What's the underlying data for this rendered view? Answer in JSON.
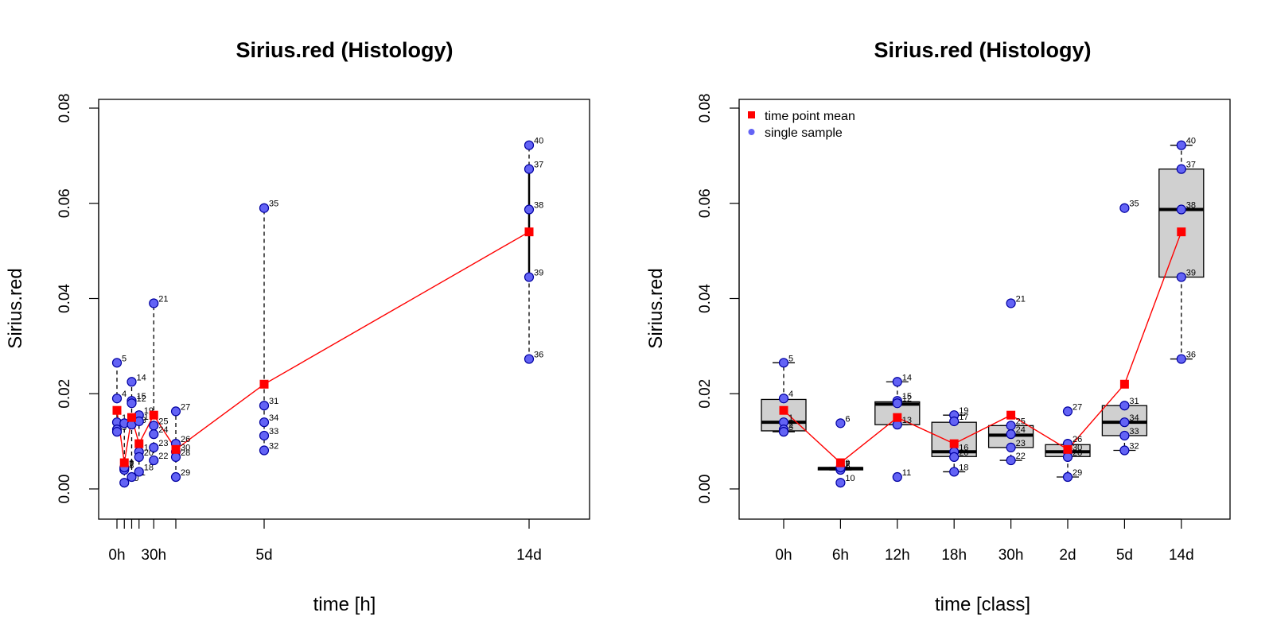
{
  "chart_data": [
    {
      "type": "scatter",
      "title": "Sirius.red (Histology)",
      "xlabel": "time [h]",
      "ylabel": "Sirius.red",
      "ylim": [
        0,
        0.08
      ],
      "yticks": [
        "0.00",
        "0.02",
        "0.04",
        "0.06",
        "0.08"
      ],
      "xlim": [
        -6,
        342
      ],
      "xtick_positions": [
        0,
        6,
        12,
        18,
        30,
        48,
        120,
        336
      ],
      "xtick_labels": [
        {
          "x": 0,
          "label": "0h"
        },
        {
          "x": 30,
          "label": "30h"
        },
        {
          "x": 120,
          "label": "5d"
        },
        {
          "x": 336,
          "label": "14d"
        }
      ],
      "series": [
        {
          "name": "time point mean",
          "x": [
            0,
            6,
            12,
            18,
            30,
            48,
            120,
            336
          ],
          "y": [
            0.0165,
            0.0055,
            0.015,
            0.0095,
            0.0155,
            0.0083,
            0.022,
            0.054
          ]
        }
      ],
      "samples": [
        {
          "x": 0,
          "y": 0.0265,
          "id": "5"
        },
        {
          "x": 0,
          "y": 0.019,
          "id": "4"
        },
        {
          "x": 0,
          "y": 0.014,
          "id": "1"
        },
        {
          "x": 0,
          "y": 0.0125,
          "id": "2"
        },
        {
          "x": 0,
          "y": 0.012,
          "id": "3"
        },
        {
          "x": 6,
          "y": 0.0138,
          "id": "6"
        },
        {
          "x": 6,
          "y": 0.0043,
          "id": "7"
        },
        {
          "x": 6,
          "y": 0.004,
          "id": "8"
        },
        {
          "x": 6,
          "y": 0.0045,
          "id": "9"
        },
        {
          "x": 6,
          "y": 0.0013,
          "id": "10"
        },
        {
          "x": 12,
          "y": 0.0225,
          "id": "14"
        },
        {
          "x": 12,
          "y": 0.0185,
          "id": "15"
        },
        {
          "x": 12,
          "y": 0.018,
          "id": "12"
        },
        {
          "x": 12,
          "y": 0.0135,
          "id": "13"
        },
        {
          "x": 12,
          "y": 0.0025,
          "id": "11"
        },
        {
          "x": 18,
          "y": 0.0155,
          "id": "19"
        },
        {
          "x": 18,
          "y": 0.0142,
          "id": "17"
        },
        {
          "x": 18,
          "y": 0.0078,
          "id": "16"
        },
        {
          "x": 18,
          "y": 0.0067,
          "id": "20"
        },
        {
          "x": 18,
          "y": 0.0036,
          "id": "18"
        },
        {
          "x": 30,
          "y": 0.039,
          "id": "21"
        },
        {
          "x": 30,
          "y": 0.0133,
          "id": "25"
        },
        {
          "x": 30,
          "y": 0.0115,
          "id": "24"
        },
        {
          "x": 30,
          "y": 0.0087,
          "id": "23"
        },
        {
          "x": 30,
          "y": 0.006,
          "id": "22"
        },
        {
          "x": 48,
          "y": 0.0163,
          "id": "27"
        },
        {
          "x": 48,
          "y": 0.0095,
          "id": "26"
        },
        {
          "x": 48,
          "y": 0.0078,
          "id": "30"
        },
        {
          "x": 48,
          "y": 0.0067,
          "id": "28"
        },
        {
          "x": 48,
          "y": 0.0025,
          "id": "29"
        },
        {
          "x": 120,
          "y": 0.059,
          "id": "35"
        },
        {
          "x": 120,
          "y": 0.0175,
          "id": "31"
        },
        {
          "x": 120,
          "y": 0.014,
          "id": "34"
        },
        {
          "x": 120,
          "y": 0.0112,
          "id": "33"
        },
        {
          "x": 120,
          "y": 0.0081,
          "id": "32"
        },
        {
          "x": 336,
          "y": 0.0722,
          "id": "40"
        },
        {
          "x": 336,
          "y": 0.0672,
          "id": "37"
        },
        {
          "x": 336,
          "y": 0.0587,
          "id": "38"
        },
        {
          "x": 336,
          "y": 0.0445,
          "id": "39"
        },
        {
          "x": 336,
          "y": 0.0273,
          "id": "36"
        }
      ],
      "ranges": [
        {
          "x": 0,
          "y1": 0.012,
          "y2": 0.0265
        },
        {
          "x": 6,
          "y1": 0.0013,
          "y2": 0.0138
        },
        {
          "x": 12,
          "y1": 0.0025,
          "y2": 0.0225
        },
        {
          "x": 18,
          "y1": 0.0036,
          "y2": 0.0155
        },
        {
          "x": 30,
          "y1": 0.006,
          "y2": 0.039
        },
        {
          "x": 48,
          "y1": 0.0025,
          "y2": 0.0163
        },
        {
          "x": 120,
          "y1": 0.0081,
          "y2": 0.059
        },
        {
          "x": 336,
          "y1": 0.0273,
          "y2": 0.0722
        }
      ]
    },
    {
      "type": "box",
      "title": "Sirius.red (Histology)",
      "xlabel": "time [class]",
      "ylabel": "Sirius.red",
      "ylim": [
        0,
        0.08
      ],
      "yticks": [
        "0.00",
        "0.02",
        "0.04",
        "0.06",
        "0.08"
      ],
      "categories": [
        "0h",
        "6h",
        "12h",
        "18h",
        "30h",
        "2d",
        "5d",
        "14d"
      ],
      "legend": {
        "position": "top-left",
        "entries": [
          "time point mean",
          "single sample"
        ]
      },
      "boxes": [
        {
          "lw": 0.012,
          "q1": 0.0122,
          "med": 0.014,
          "q3": 0.0188,
          "uw": 0.0265,
          "outliers": []
        },
        {
          "lw": 0.004,
          "q1": 0.004,
          "med": 0.0043,
          "q3": 0.0045,
          "uw": 0.0045,
          "outliers": [
            0.0138,
            0.0013
          ]
        },
        {
          "lw": 0.0135,
          "q1": 0.0135,
          "med": 0.0178,
          "q3": 0.0183,
          "uw": 0.0225,
          "outliers": [
            0.0025
          ]
        },
        {
          "lw": 0.0036,
          "q1": 0.0068,
          "med": 0.0078,
          "q3": 0.014,
          "uw": 0.0155,
          "outliers": []
        },
        {
          "lw": 0.006,
          "q1": 0.0087,
          "med": 0.0113,
          "q3": 0.0133,
          "uw": 0.0133,
          "outliers": [
            0.039
          ]
        },
        {
          "lw": 0.0025,
          "q1": 0.0068,
          "med": 0.0078,
          "q3": 0.0093,
          "uw": 0.0093,
          "outliers": [
            0.0163
          ]
        },
        {
          "lw": 0.0081,
          "q1": 0.0112,
          "med": 0.014,
          "q3": 0.0175,
          "uw": 0.0175,
          "outliers": [
            0.059
          ]
        },
        {
          "lw": 0.0273,
          "q1": 0.0445,
          "med": 0.0587,
          "q3": 0.0672,
          "uw": 0.0722,
          "outliers": []
        }
      ],
      "series": [
        {
          "name": "time point mean",
          "values": [
            0.0165,
            0.0055,
            0.015,
            0.0095,
            0.0155,
            0.0083,
            0.022,
            0.054
          ]
        }
      ],
      "samples": [
        {
          "c": 0,
          "y": 0.0265,
          "id": "5"
        },
        {
          "c": 0,
          "y": 0.019,
          "id": "4"
        },
        {
          "c": 0,
          "y": 0.014,
          "id": "1"
        },
        {
          "c": 0,
          "y": 0.0125,
          "id": "2"
        },
        {
          "c": 0,
          "y": 0.012,
          "id": "3"
        },
        {
          "c": 1,
          "y": 0.0138,
          "id": "6"
        },
        {
          "c": 1,
          "y": 0.0043,
          "id": "7"
        },
        {
          "c": 1,
          "y": 0.004,
          "id": "8"
        },
        {
          "c": 1,
          "y": 0.0045,
          "id": "9"
        },
        {
          "c": 1,
          "y": 0.0013,
          "id": "10"
        },
        {
          "c": 2,
          "y": 0.0225,
          "id": "14"
        },
        {
          "c": 2,
          "y": 0.0185,
          "id": "15"
        },
        {
          "c": 2,
          "y": 0.018,
          "id": "12"
        },
        {
          "c": 2,
          "y": 0.0135,
          "id": "13"
        },
        {
          "c": 2,
          "y": 0.0025,
          "id": "11"
        },
        {
          "c": 3,
          "y": 0.0155,
          "id": "19"
        },
        {
          "c": 3,
          "y": 0.0142,
          "id": "17"
        },
        {
          "c": 3,
          "y": 0.0078,
          "id": "16"
        },
        {
          "c": 3,
          "y": 0.0067,
          "id": "20"
        },
        {
          "c": 3,
          "y": 0.0036,
          "id": "18"
        },
        {
          "c": 4,
          "y": 0.039,
          "id": "21"
        },
        {
          "c": 4,
          "y": 0.0133,
          "id": "25"
        },
        {
          "c": 4,
          "y": 0.0115,
          "id": "24"
        },
        {
          "c": 4,
          "y": 0.0087,
          "id": "23"
        },
        {
          "c": 4,
          "y": 0.006,
          "id": "22"
        },
        {
          "c": 5,
          "y": 0.0163,
          "id": "27"
        },
        {
          "c": 5,
          "y": 0.0095,
          "id": "26"
        },
        {
          "c": 5,
          "y": 0.0078,
          "id": "30"
        },
        {
          "c": 5,
          "y": 0.0067,
          "id": "28"
        },
        {
          "c": 5,
          "y": 0.0025,
          "id": "29"
        },
        {
          "c": 6,
          "y": 0.059,
          "id": "35"
        },
        {
          "c": 6,
          "y": 0.0175,
          "id": "31"
        },
        {
          "c": 6,
          "y": 0.014,
          "id": "34"
        },
        {
          "c": 6,
          "y": 0.0112,
          "id": "33"
        },
        {
          "c": 6,
          "y": 0.0081,
          "id": "32"
        },
        {
          "c": 7,
          "y": 0.0722,
          "id": "40"
        },
        {
          "c": 7,
          "y": 0.0672,
          "id": "37"
        },
        {
          "c": 7,
          "y": 0.0587,
          "id": "38"
        },
        {
          "c": 7,
          "y": 0.0445,
          "id": "39"
        },
        {
          "c": 7,
          "y": 0.0273,
          "id": "36"
        }
      ]
    }
  ],
  "colors": {
    "sample_fill": "#6363f5",
    "sample_stroke": "#0000a0",
    "mean": "#ff0000",
    "box_fill": "#d0d0d0"
  }
}
